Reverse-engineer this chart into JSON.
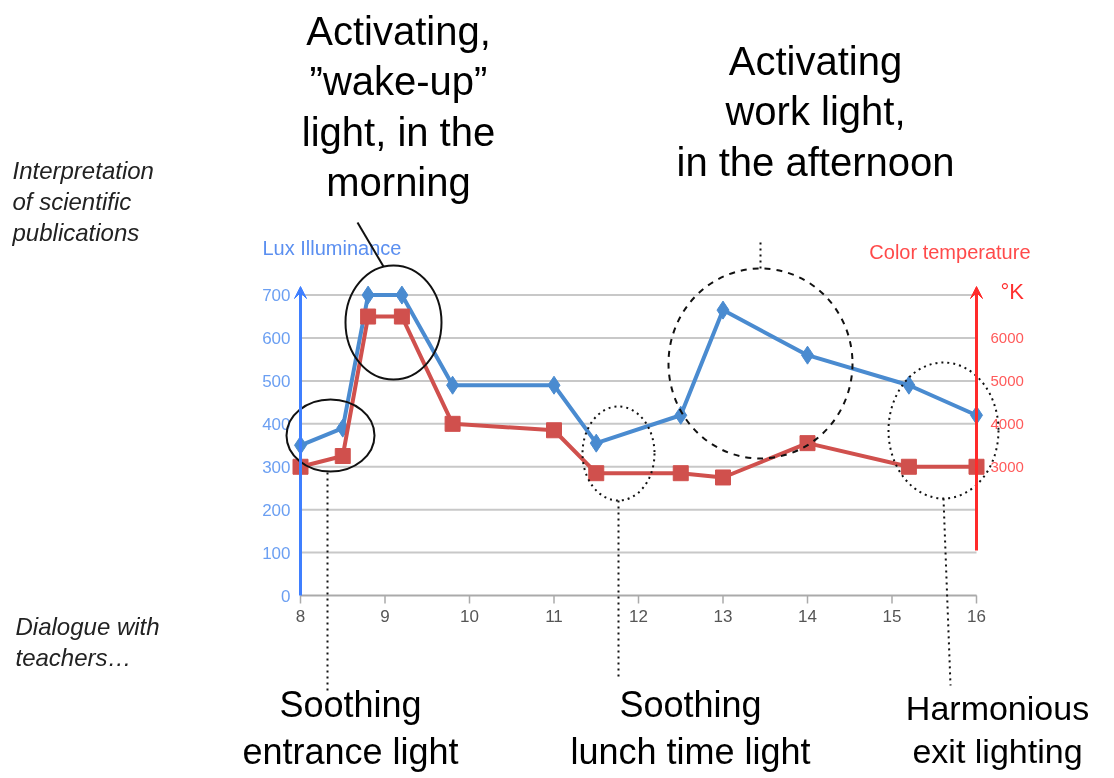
{
  "chart_data": {
    "type": "line",
    "ylabel": "Lux  Illuminance",
    "y2label": "Color temperature",
    "xlim": [
      8,
      16
    ],
    "xticks": [
      8,
      9,
      10,
      11,
      12,
      13,
      14,
      15,
      16
    ],
    "ylim": [
      0,
      720
    ],
    "yticks": [
      0,
      100,
      200,
      300,
      400,
      500,
      600,
      700
    ],
    "y2lim": [
      0,
      7200
    ],
    "y2ticks": [
      3000,
      4000,
      5000,
      6000
    ],
    "grid": "y",
    "line_style": "solid",
    "series": [
      {
        "color": "#4a8bd0",
        "marker": "diamond",
        "x": [
          8,
          8.5,
          8.8,
          9.2,
          9.8,
          11,
          11.5,
          12.5,
          13,
          14,
          15.2,
          16
        ],
        "values": [
          350,
          390,
          700,
          700,
          490,
          490,
          355,
          420,
          665,
          560,
          490,
          420
        ]
      },
      {
        "color": "#d0504d",
        "marker": "square",
        "axis": "y2",
        "x": [
          8,
          8.5,
          8.8,
          9.2,
          9.8,
          11,
          11.5,
          12.5,
          13,
          14,
          15.2,
          16
        ],
        "values": [
          3000,
          3250,
          6500,
          6500,
          4000,
          3850,
          2850,
          2850,
          2750,
          3550,
          3000,
          3000
        ]
      }
    ],
    "annotations": [
      "Interpretation of scientific publications",
      "Dialogue with teachers…",
      "Activating, ”wake-up” light, in the morning",
      "Activating work light, in the afternoon",
      "Soothing entrance light",
      "Soothing lunch time light",
      "Harmonious exit lighting",
      "°K"
    ]
  }
}
